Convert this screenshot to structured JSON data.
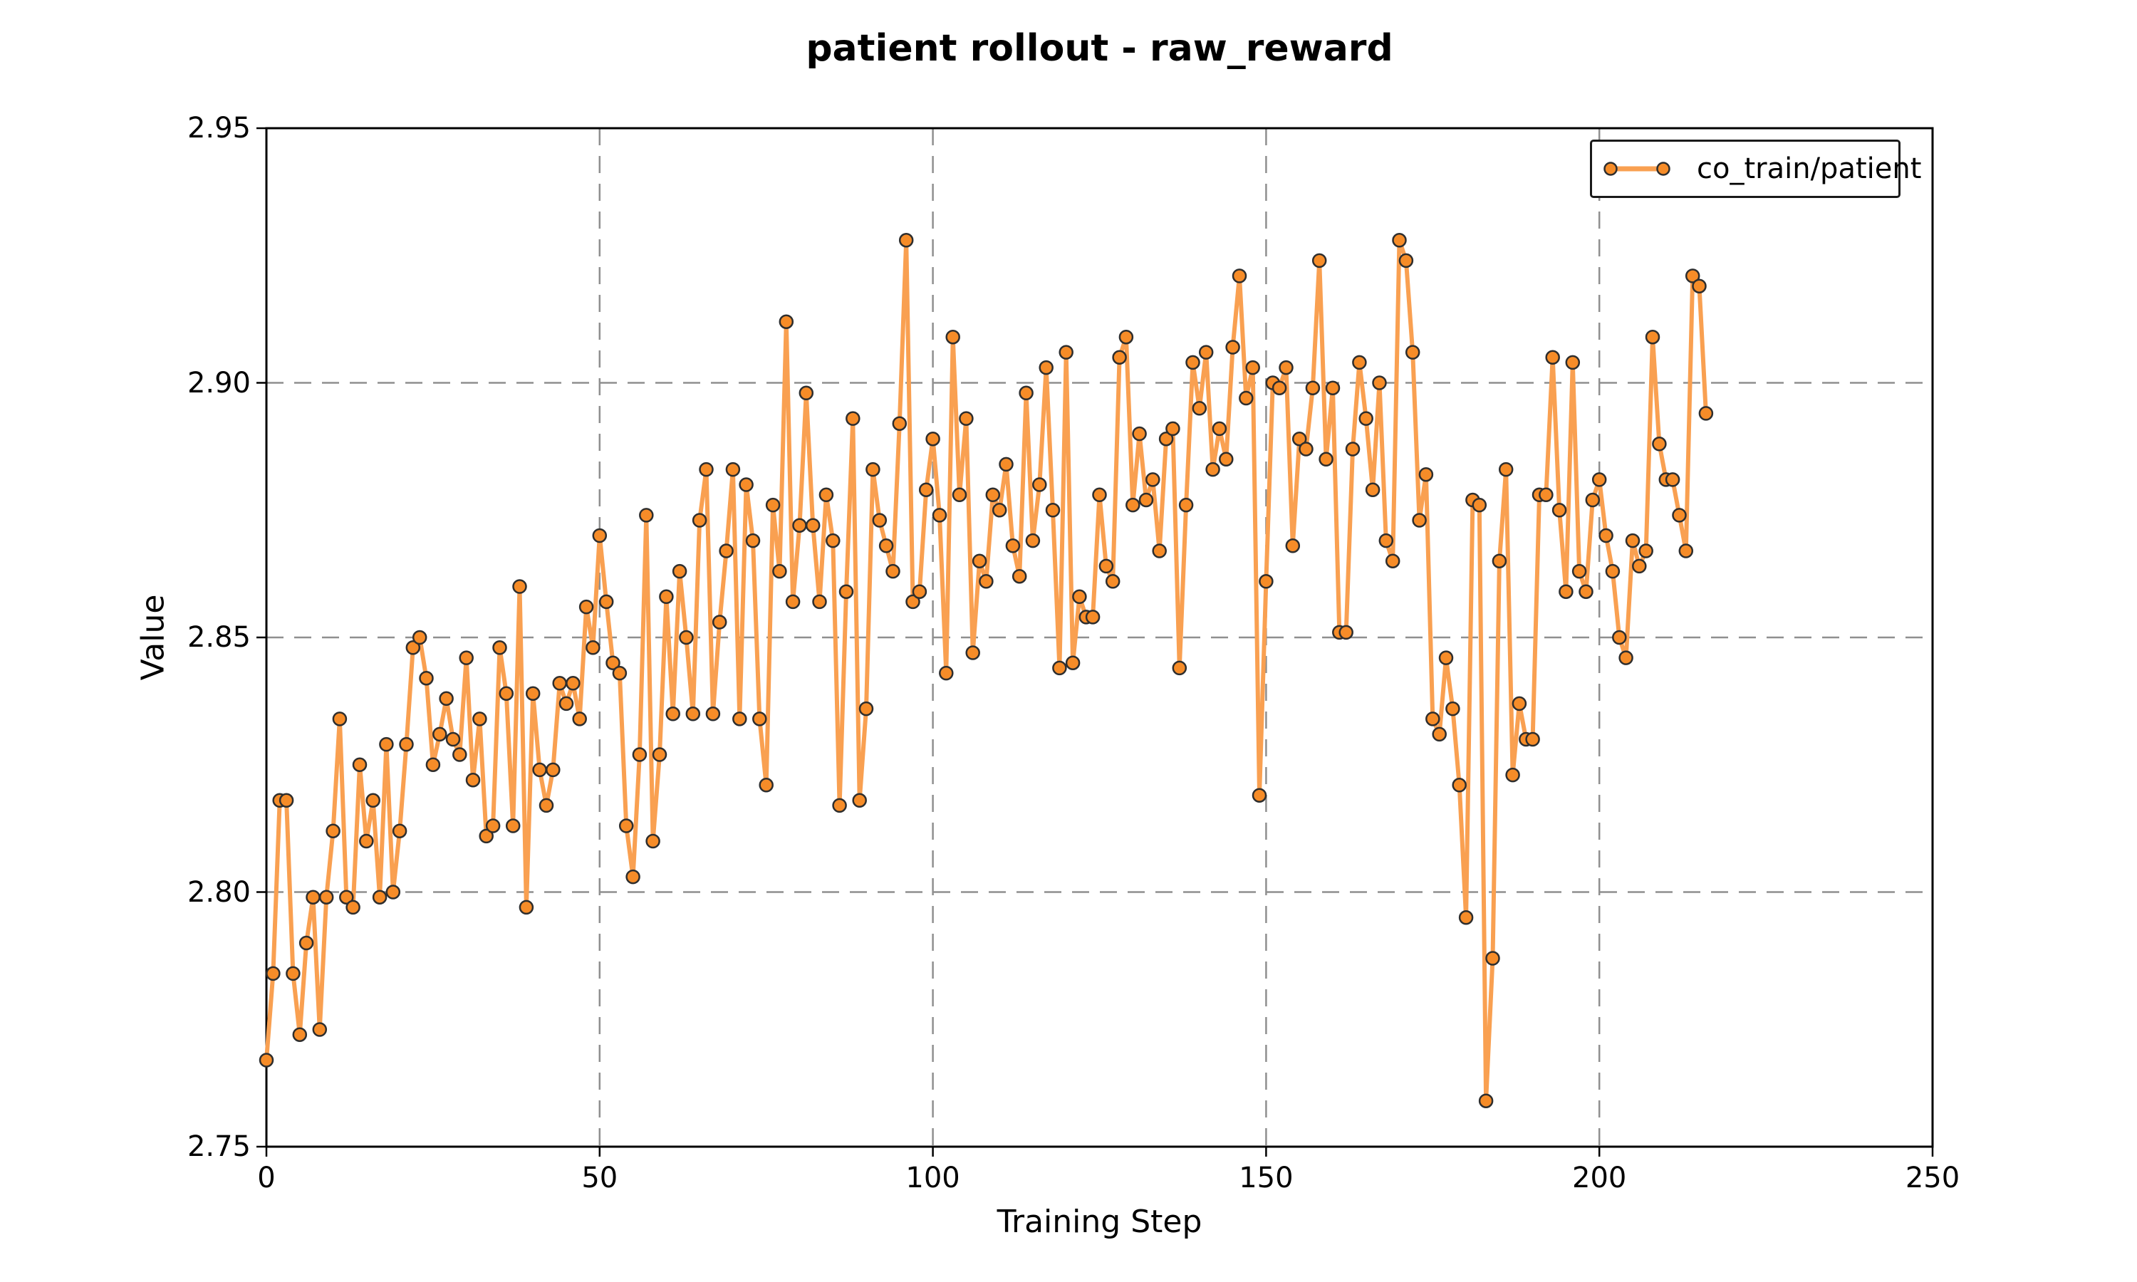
{
  "chart_data": {
    "type": "line",
    "title": "patient rollout - raw_reward",
    "xlabel": "Training Step",
    "ylabel": "Value",
    "xlim": [
      0,
      250
    ],
    "ylim": [
      2.75,
      2.95
    ],
    "xticks": [
      0,
      50,
      100,
      150,
      200,
      250
    ],
    "yticks": [
      2.75,
      2.8,
      2.85,
      2.9,
      2.95
    ],
    "grid": "dashed, on major ticks",
    "legend": {
      "label": "co_train/patient",
      "position": "upper right"
    },
    "colors": {
      "line": "#f9a051",
      "marker_fill": "#f68c28",
      "marker_edge": "#2e2e2e",
      "grid": "#8f8f8f",
      "spine": "#000000",
      "text": "#000000",
      "background": "#ffffff"
    },
    "series": [
      {
        "name": "co_train/patient",
        "x_start": 0,
        "x_step": 1,
        "values": [
          2.767,
          2.784,
          2.818,
          2.818,
          2.784,
          2.772,
          2.79,
          2.799,
          2.773,
          2.799,
          2.812,
          2.834,
          2.799,
          2.797,
          2.825,
          2.81,
          2.818,
          2.799,
          2.829,
          2.8,
          2.812,
          2.829,
          2.848,
          2.85,
          2.842,
          2.825,
          2.831,
          2.838,
          2.83,
          2.827,
          2.846,
          2.822,
          2.834,
          2.811,
          2.813,
          2.848,
          2.839,
          2.813,
          2.86,
          2.797,
          2.839,
          2.824,
          2.817,
          2.824,
          2.841,
          2.837,
          2.841,
          2.834,
          2.856,
          2.848,
          2.87,
          2.857,
          2.845,
          2.843,
          2.813,
          2.803,
          2.827,
          2.874,
          2.81,
          2.827,
          2.858,
          2.835,
          2.863,
          2.85,
          2.835,
          2.873,
          2.883,
          2.835,
          2.853,
          2.867,
          2.883,
          2.834,
          2.88,
          2.869,
          2.834,
          2.821,
          2.876,
          2.863,
          2.912,
          2.857,
          2.872,
          2.898,
          2.872,
          2.857,
          2.878,
          2.869,
          2.817,
          2.859,
          2.893,
          2.818,
          2.836,
          2.883,
          2.873,
          2.868,
          2.863,
          2.892,
          2.928,
          2.857,
          2.859,
          2.879,
          2.889,
          2.874,
          2.843,
          2.909,
          2.878,
          2.893,
          2.847,
          2.865,
          2.861,
          2.878,
          2.875,
          2.884,
          2.868,
          2.862,
          2.898,
          2.869,
          2.88,
          2.903,
          2.875,
          2.844,
          2.906,
          2.845,
          2.858,
          2.854,
          2.854,
          2.878,
          2.864,
          2.861,
          2.905,
          2.909,
          2.876,
          2.89,
          2.877,
          2.881,
          2.867,
          2.889,
          2.891,
          2.844,
          2.876,
          2.904,
          2.895,
          2.906,
          2.883,
          2.891,
          2.885,
          2.907,
          2.921,
          2.897,
          2.903,
          2.819,
          2.861,
          2.9,
          2.899,
          2.903,
          2.868,
          2.889,
          2.887,
          2.899,
          2.924,
          2.885,
          2.899,
          2.851,
          2.851,
          2.887,
          2.904,
          2.893,
          2.879,
          2.9,
          2.869,
          2.865,
          2.928,
          2.924,
          2.906,
          2.873,
          2.882,
          2.834,
          2.831,
          2.846,
          2.836,
          2.821,
          2.795,
          2.877,
          2.876,
          2.759,
          2.787,
          2.865,
          2.883,
          2.823,
          2.837,
          2.83,
          2.83,
          2.878,
          2.878,
          2.905,
          2.875,
          2.859,
          2.904,
          2.863,
          2.859,
          2.877,
          2.881,
          2.87,
          2.863,
          2.85,
          2.846,
          2.869,
          2.864,
          2.867,
          2.909,
          2.888,
          2.881,
          2.881,
          2.874,
          2.867,
          2.921,
          2.919,
          2.894
        ]
      }
    ]
  }
}
